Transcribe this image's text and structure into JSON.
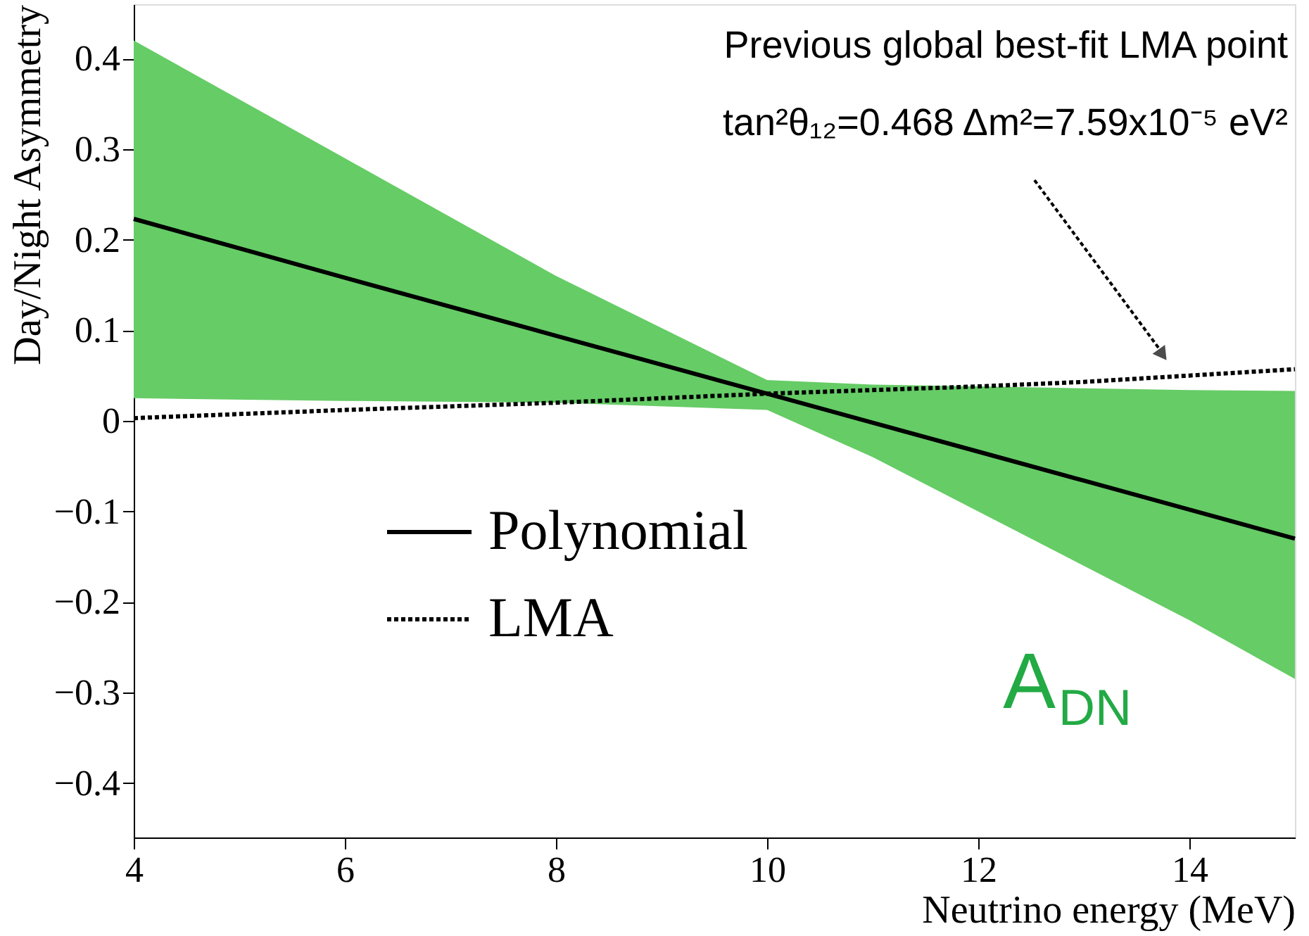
{
  "chart_data": {
    "type": "line",
    "xlabel": "Neutrino energy (MeV)",
    "ylabel": "Day/Night Asymmetry",
    "x": [
      4,
      6,
      8,
      10,
      11,
      12,
      13,
      14,
      15
    ],
    "series": [
      {
        "name": "Polynomial",
        "color": "#000000",
        "line_style": "solid",
        "values": [
          0.223,
          0.158,
          0.094,
          0.03,
          -0.002,
          -0.034,
          -0.066,
          -0.098,
          -0.13
        ],
        "lower": [
          0.025,
          0.022,
          0.02,
          0.012,
          -0.04,
          -0.1,
          -0.16,
          -0.22,
          -0.285
        ],
        "upper": [
          0.42,
          0.29,
          0.16,
          0.045,
          0.04,
          0.038,
          0.036,
          0.034,
          0.033
        ]
      },
      {
        "name": "LMA",
        "color": "#000000",
        "line_style": "dotted",
        "values": [
          0.003,
          0.012,
          0.02,
          0.03,
          0.034,
          0.038,
          0.043,
          0.05,
          0.057
        ]
      }
    ],
    "xlim": [
      4,
      15
    ],
    "xticks": [
      4,
      6,
      8,
      10,
      12,
      14
    ],
    "ylim": [
      -0.46,
      0.46
    ],
    "yticks": [
      {
        "value": -0.4,
        "label": "−0.4"
      },
      {
        "value": -0.3,
        "label": "−0.3"
      },
      {
        "value": -0.2,
        "label": "−0.2"
      },
      {
        "value": -0.1,
        "label": "−0.1"
      },
      0,
      0.1,
      0.2,
      0.3,
      0.4
    ],
    "grid": false,
    "legend": "bottom left",
    "marker": "none",
    "annotations": [
      "Previous global best-fit LMA point",
      "tan²θ₁₂=0.468  Δm²=7.59x10⁻⁵ eV²",
      "A$_{DN}$"
    ]
  }
}
